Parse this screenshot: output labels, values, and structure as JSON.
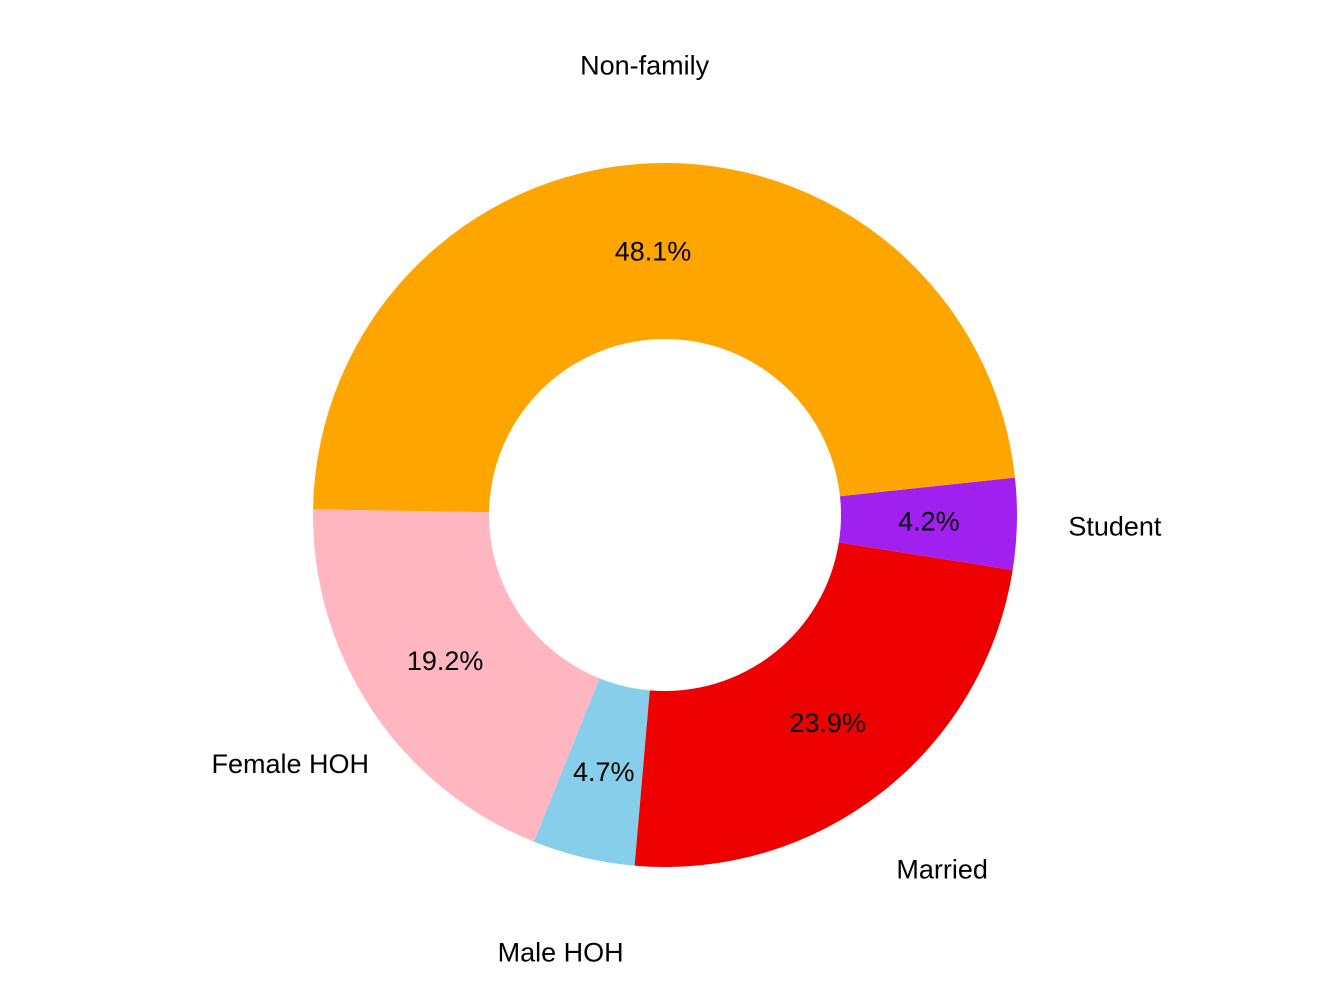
{
  "chart_data": {
    "type": "pie",
    "donut": true,
    "title": "",
    "direction": "counterclockwise",
    "slices": [
      {
        "label": "Student",
        "value": 4.2,
        "value_label": "4.2%",
        "color": "#A020F0"
      },
      {
        "label": "Non-family",
        "value": 48.1,
        "value_label": "48.1%",
        "color": "#FFA500"
      },
      {
        "label": "Female HOH",
        "value": 19.2,
        "value_label": "19.2%",
        "color": "#FFB6C1"
      },
      {
        "label": "Male HOH",
        "value": 4.7,
        "value_label": "4.7%",
        "color": "#87CEEB"
      },
      {
        "label": "Married",
        "value": 23.9,
        "value_label": "23.9%",
        "color": "#EE0000"
      }
    ]
  }
}
